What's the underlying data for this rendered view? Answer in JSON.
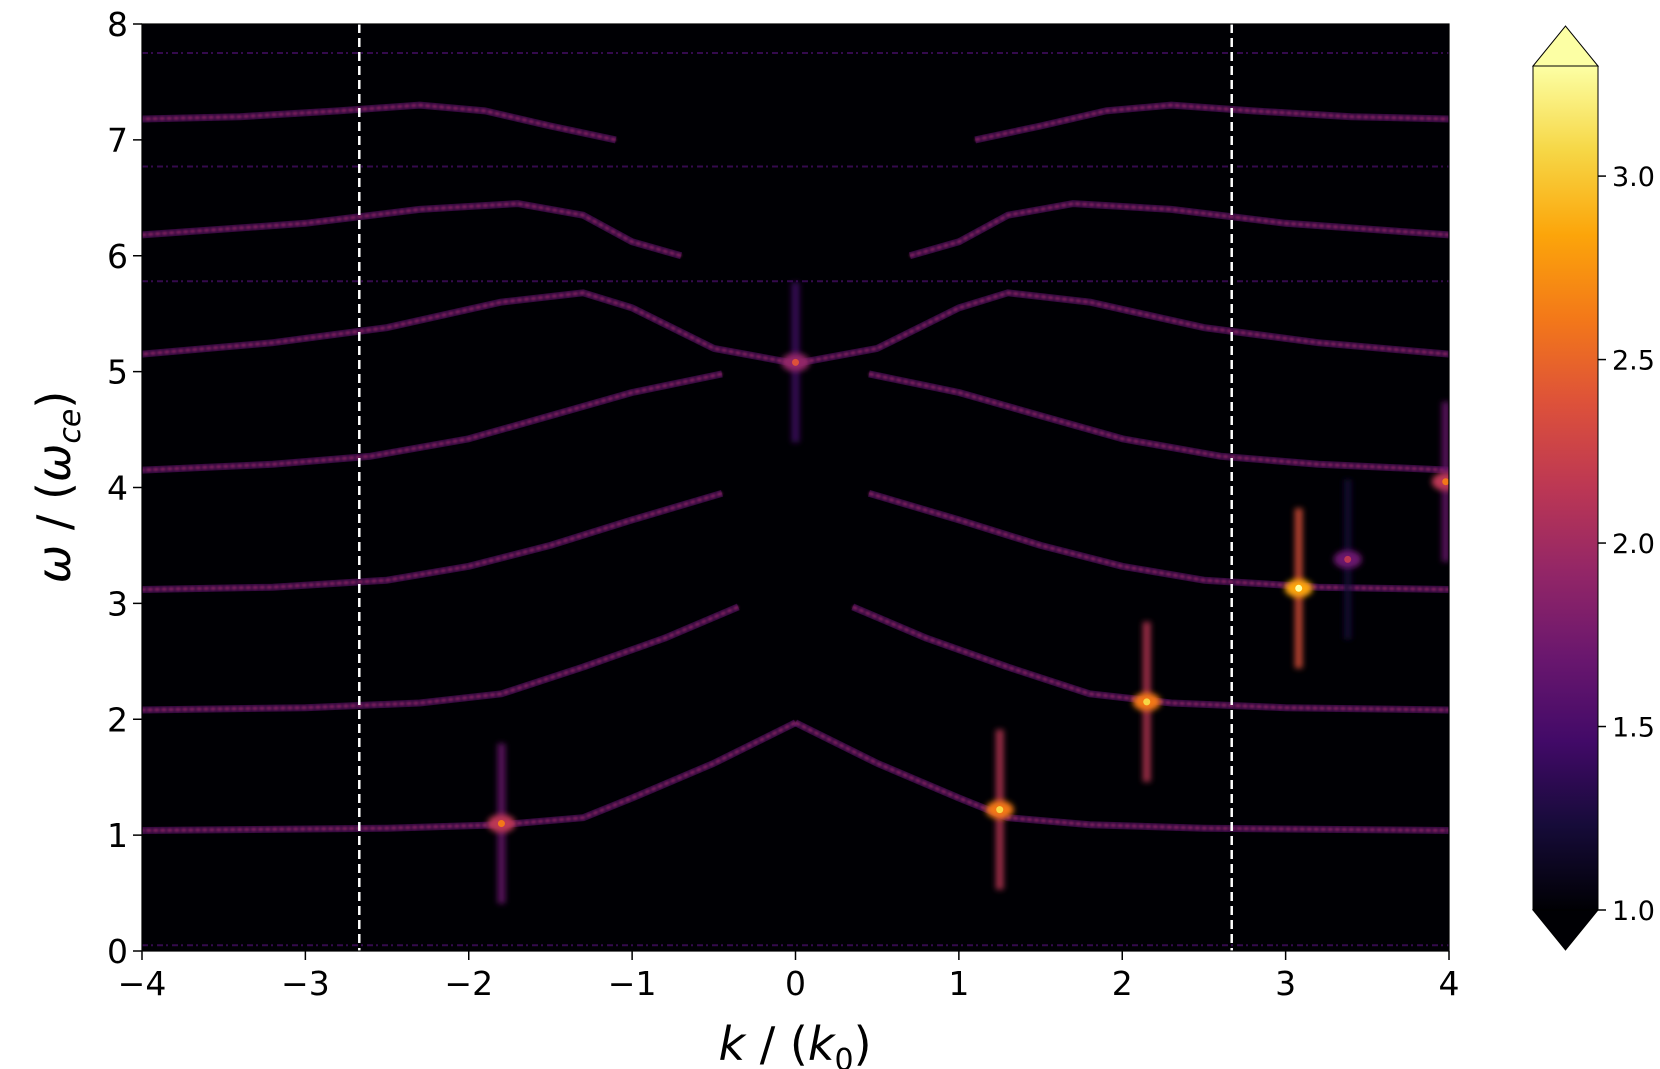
{
  "chart_data": {
    "type": "heatmap",
    "title": "",
    "xlabel": "k / (k_0)",
    "ylabel": "ω / (ω_ce)",
    "xlim": [
      -4,
      4
    ],
    "ylim": [
      0,
      8
    ],
    "xticks": [
      "−4",
      "−3",
      "−2",
      "−1",
      "0",
      "1",
      "2",
      "3",
      "4"
    ],
    "yticks": [
      "0",
      "1",
      "2",
      "3",
      "4",
      "5",
      "6",
      "7",
      "8"
    ],
    "x_tick_values": [
      -4,
      -3,
      -2,
      -1,
      0,
      1,
      2,
      3,
      4
    ],
    "y_tick_values": [
      0,
      1,
      2,
      3,
      4,
      5,
      6,
      7,
      8
    ],
    "colormap": "inferno",
    "colorbar": {
      "range": [
        1.0,
        3.3
      ],
      "extend": "both",
      "tick_values": [
        1.0,
        1.5,
        2.0,
        2.5,
        3.0
      ],
      "tick_labels": [
        "1.0",
        "1.5",
        "2.0",
        "2.5",
        "3.0"
      ]
    },
    "vertical_lines": [
      -2.67,
      2.67
    ],
    "vertical_line_style": "white dashed",
    "harmonic_levels": [
      1,
      2,
      3,
      4,
      5,
      6,
      7
    ],
    "dispersion_branches": [
      {
        "n": 1,
        "points": [
          [
            0.0,
            1.97
          ],
          [
            0.5,
            1.62
          ],
          [
            1.0,
            1.32
          ],
          [
            1.3,
            1.15
          ],
          [
            1.8,
            1.09
          ],
          [
            2.5,
            1.06
          ],
          [
            4.0,
            1.04
          ]
        ]
      },
      {
        "n": 2,
        "points": [
          [
            0.35,
            2.97
          ],
          [
            0.8,
            2.7
          ],
          [
            1.3,
            2.45
          ],
          [
            1.8,
            2.22
          ],
          [
            2.3,
            2.14
          ],
          [
            3.0,
            2.1
          ],
          [
            4.0,
            2.08
          ]
        ]
      },
      {
        "n": 3,
        "points": [
          [
            0.45,
            3.95
          ],
          [
            1.0,
            3.72
          ],
          [
            1.5,
            3.5
          ],
          [
            2.0,
            3.32
          ],
          [
            2.5,
            3.2
          ],
          [
            3.2,
            3.14
          ],
          [
            4.0,
            3.12
          ]
        ]
      },
      {
        "n": 4,
        "points": [
          [
            0.45,
            4.98
          ],
          [
            1.0,
            4.82
          ],
          [
            1.5,
            4.62
          ],
          [
            2.0,
            4.42
          ],
          [
            2.6,
            4.27
          ],
          [
            3.2,
            4.2
          ],
          [
            4.0,
            4.15
          ]
        ]
      },
      {
        "n": 5,
        "points": [
          [
            0.0,
            5.07
          ],
          [
            0.5,
            5.2
          ],
          [
            1.0,
            5.55
          ],
          [
            1.3,
            5.68
          ],
          [
            1.8,
            5.6
          ],
          [
            2.5,
            5.38
          ],
          [
            3.2,
            5.25
          ],
          [
            4.0,
            5.15
          ]
        ]
      },
      {
        "n": 6,
        "points": [
          [
            0.7,
            6.0
          ],
          [
            1.0,
            6.12
          ],
          [
            1.3,
            6.35
          ],
          [
            1.7,
            6.45
          ],
          [
            2.3,
            6.4
          ],
          [
            3.0,
            6.28
          ],
          [
            4.0,
            6.18
          ]
        ]
      },
      {
        "n": 7,
        "points": [
          [
            1.1,
            7.0
          ],
          [
            1.5,
            7.12
          ],
          [
            1.9,
            7.25
          ],
          [
            2.3,
            7.3
          ],
          [
            2.8,
            7.25
          ],
          [
            3.4,
            7.2
          ],
          [
            4.0,
            7.18
          ]
        ]
      }
    ],
    "faint_lines": [
      5.78,
      6.77,
      7.75,
      0.05
    ],
    "hotspots": [
      {
        "k": 1.25,
        "w": 1.22,
        "value": 3.1
      },
      {
        "k": 2.15,
        "w": 2.15,
        "value": 3.1
      },
      {
        "k": 3.08,
        "w": 3.13,
        "value": 3.2
      },
      {
        "k": 3.98,
        "w": 4.05,
        "value": 2.6
      },
      {
        "k": -1.8,
        "w": 1.1,
        "value": 2.6
      },
      {
        "k": 0.0,
        "w": 5.08,
        "value": 2.4
      },
      {
        "k": 3.38,
        "w": 3.38,
        "value": 2.1
      }
    ],
    "grid": false
  }
}
